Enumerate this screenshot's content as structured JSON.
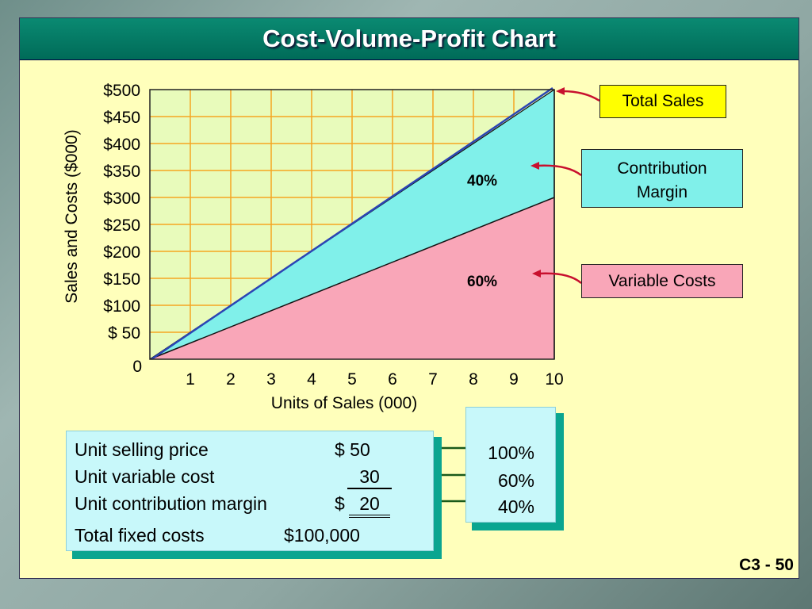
{
  "slide": {
    "title": "Cost-Volume-Profit Chart",
    "page_number": "C3 - 50"
  },
  "chart_data": {
    "type": "area",
    "title": "",
    "xlabel": "Units of Sales (000)",
    "ylabel": "Sales and Costs ($000)",
    "x": [
      0,
      10
    ],
    "xlim": [
      0,
      10
    ],
    "ylim": [
      0,
      500
    ],
    "x_ticks": [
      "1",
      "2",
      "3",
      "4",
      "5",
      "6",
      "7",
      "8",
      "9",
      "10"
    ],
    "y_ticks": [
      "$500",
      "$450",
      "$400",
      "$350",
      "$300",
      "$250",
      "$200",
      "$150",
      "$100",
      "$ 50"
    ],
    "y_zero_label": "0",
    "grid": true,
    "series": [
      {
        "name": "Total Sales",
        "values": [
          0,
          500
        ],
        "color": "#2b45b5"
      },
      {
        "name": "Variable Costs",
        "values": [
          0,
          300
        ],
        "color": "#f9a6b8"
      }
    ],
    "region_colors": {
      "contribution_margin": "#80f0ea",
      "variable_costs": "#f9a6b8",
      "plot_background": "#e8fbbb",
      "grid": "#f5a623"
    },
    "annotations": [
      {
        "text": "40%",
        "region": "contribution_margin"
      },
      {
        "text": "60%",
        "region": "variable_costs"
      }
    ]
  },
  "callouts": {
    "total_sales": "Total Sales",
    "contribution_margin_line1": "Contribution",
    "contribution_margin_line2": "Margin",
    "variable_costs": "Variable Costs"
  },
  "unit_info": {
    "selling_price_label": "Unit selling price",
    "selling_price_value": "$ 50",
    "variable_cost_label": "Unit variable cost",
    "variable_cost_value": "30",
    "contribution_margin_label": "Unit contribution margin",
    "contribution_margin_currency": "$",
    "contribution_margin_value": "20",
    "fixed_costs_label": "Total fixed costs",
    "fixed_costs_value": "$100,000"
  },
  "ratios": {
    "selling_price_pct": "100%",
    "variable_cost_pct": "60%",
    "contribution_margin_pct": "40%"
  }
}
